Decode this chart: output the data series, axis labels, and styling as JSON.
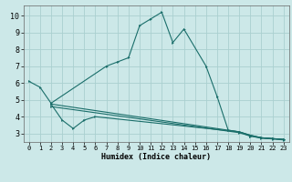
{
  "xlabel": "Humidex (Indice chaleur)",
  "bg_color": "#cce8e8",
  "grid_color": "#aad0d0",
  "line_color": "#1a6e6a",
  "xlim": [
    -0.5,
    23.5
  ],
  "ylim": [
    2.5,
    10.6
  ],
  "xticks": [
    0,
    1,
    2,
    3,
    4,
    5,
    6,
    7,
    8,
    9,
    10,
    11,
    12,
    13,
    14,
    15,
    16,
    17,
    18,
    19,
    20,
    21,
    22,
    23
  ],
  "yticks": [
    3,
    4,
    5,
    6,
    7,
    8,
    9,
    10
  ],
  "lines": [
    {
      "x": [
        0,
        1,
        2,
        7,
        8,
        9,
        10,
        11,
        12,
        13,
        14,
        16,
        17,
        18,
        19,
        20,
        21,
        22,
        23
      ],
      "y": [
        6.1,
        5.75,
        4.8,
        7.0,
        7.25,
        7.5,
        9.4,
        9.8,
        10.2,
        8.4,
        9.2,
        7.0,
        5.2,
        3.2,
        3.1,
        2.85,
        2.75,
        2.7,
        2.65
      ]
    },
    {
      "x": [
        2,
        3,
        4,
        5,
        6,
        19,
        20,
        21,
        22,
        23
      ],
      "y": [
        4.75,
        3.8,
        3.3,
        3.8,
        4.0,
        3.1,
        2.9,
        2.75,
        2.7,
        2.65
      ]
    },
    {
      "x": [
        2,
        19,
        20,
        21,
        22,
        23
      ],
      "y": [
        4.75,
        3.1,
        2.9,
        2.75,
        2.7,
        2.65
      ]
    },
    {
      "x": [
        2,
        19,
        20,
        21,
        22,
        23
      ],
      "y": [
        4.6,
        3.05,
        2.85,
        2.72,
        2.68,
        2.62
      ]
    }
  ]
}
